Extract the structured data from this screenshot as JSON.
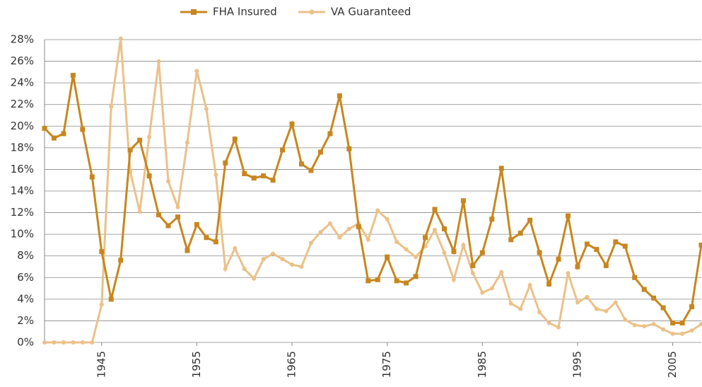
{
  "chart_data": {
    "type": "line",
    "x": [
      1939,
      1940,
      1941,
      1942,
      1943,
      1944,
      1945,
      1946,
      1947,
      1948,
      1949,
      1950,
      1951,
      1952,
      1953,
      1954,
      1955,
      1956,
      1957,
      1958,
      1959,
      1960,
      1961,
      1962,
      1963,
      1964,
      1965,
      1966,
      1967,
      1968,
      1969,
      1970,
      1971,
      1972,
      1973,
      1974,
      1975,
      1976,
      1977,
      1978,
      1979,
      1980,
      1981,
      1982,
      1983,
      1984,
      1985,
      1986,
      1987,
      1988,
      1989,
      1990,
      1991,
      1992,
      1993,
      1994,
      1995,
      1996,
      1997,
      1998,
      1999,
      2000,
      2001,
      2002,
      2003,
      2004,
      2005,
      2006,
      2007,
      2008
    ],
    "series": [
      {
        "name": "FHA Insured",
        "color": "#c8861f",
        "marker": "square",
        "values": [
          19.8,
          18.9,
          19.3,
          24.7,
          19.7,
          15.3,
          8.4,
          4.0,
          7.6,
          17.8,
          18.7,
          15.4,
          11.8,
          10.8,
          11.6,
          8.5,
          10.9,
          9.7,
          9.3,
          16.6,
          18.8,
          15.6,
          15.2,
          15.4,
          15.0,
          17.8,
          20.2,
          16.5,
          15.9,
          17.6,
          19.3,
          22.8,
          17.9,
          10.7,
          5.7,
          5.8,
          7.9,
          5.7,
          5.5,
          6.1,
          9.7,
          12.3,
          10.5,
          8.4,
          13.1,
          7.1,
          8.3,
          11.4,
          16.1,
          9.5,
          10.1,
          11.3,
          8.3,
          5.4,
          7.7,
          11.7,
          7.0,
          9.1,
          8.6,
          7.1,
          9.3,
          8.9,
          6.0,
          4.9,
          4.1,
          3.2,
          1.8,
          1.8,
          3.3,
          9.0
        ]
      },
      {
        "name": "VA Guaranteed",
        "color": "#ebc189",
        "marker": "circle",
        "values": [
          0,
          0,
          0,
          0,
          0,
          0,
          3.5,
          21.8,
          28.1,
          15.8,
          12.1,
          19.0,
          26.0,
          14.9,
          12.5,
          18.5,
          25.1,
          21.6,
          15.5,
          6.8,
          8.7,
          6.8,
          5.9,
          7.7,
          8.2,
          7.7,
          7.2,
          7.0,
          9.2,
          10.2,
          11.0,
          9.7,
          10.5,
          11.0,
          9.5,
          12.2,
          11.4,
          9.3,
          8.6,
          7.9,
          8.9,
          10.4,
          8.3,
          5.8,
          9.0,
          6.4,
          4.6,
          5.0,
          6.5,
          3.6,
          3.1,
          5.3,
          2.8,
          1.8,
          1.4,
          6.4,
          3.7,
          4.2,
          3.1,
          2.9,
          3.7,
          2.1,
          1.6,
          1.5,
          1.7,
          1.2,
          0.8,
          0.8,
          1.1,
          1.7
        ]
      }
    ],
    "xlim": [
      1939,
      2008
    ],
    "xticks": [
      1945,
      1955,
      1965,
      1975,
      1985,
      1995,
      2005
    ],
    "ylim": [
      0,
      28
    ],
    "yticks": [
      {
        "value": 0,
        "label": "0%"
      },
      {
        "value": 2,
        "label": "2%"
      },
      {
        "value": 4,
        "label": "4%"
      },
      {
        "value": 6,
        "label": "6%"
      },
      {
        "value": 8,
        "label": "8%"
      },
      {
        "value": 10,
        "label": "10%"
      },
      {
        "value": 12,
        "label": "12%"
      },
      {
        "value": 14,
        "label": "14%"
      },
      {
        "value": 16,
        "label": "16%"
      },
      {
        "value": 18,
        "label": "18%"
      },
      {
        "value": 20,
        "label": "20%"
      },
      {
        "value": 22,
        "label": "22%"
      },
      {
        "value": 24,
        "label": "24%"
      },
      {
        "value": 26,
        "label": "26%"
      },
      {
        "value": 28,
        "label": "28%"
      }
    ],
    "grid": true
  }
}
